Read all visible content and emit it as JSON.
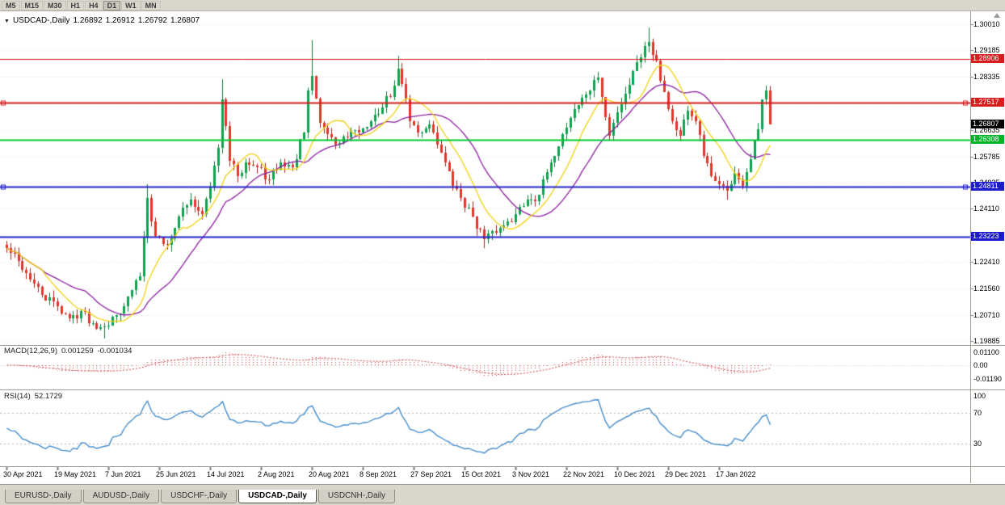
{
  "toolbar": {
    "timeframes": [
      "M5",
      "M15",
      "M30",
      "H1",
      "H4",
      "D1",
      "W1",
      "MN"
    ],
    "active": "D1"
  },
  "chart": {
    "symbol": "USDCAD-,Daily",
    "collapse_icon": "▼",
    "ohlc": {
      "open": "1.26892",
      "high": "1.26912",
      "low": "1.26792",
      "close": "1.26807"
    },
    "price_axis": {
      "ticks": [
        {
          "label": "1.30010",
          "v": 1.3001
        },
        {
          "label": "1.29185",
          "v": 1.29185
        },
        {
          "label": "1.28335",
          "v": 1.28335
        },
        {
          "label": "1.27485",
          "v": 1.27485
        },
        {
          "label": "1.26635",
          "v": 1.26635
        },
        {
          "label": "1.25785",
          "v": 1.25785
        },
        {
          "label": "1.24935",
          "v": 1.24935
        },
        {
          "label": "1.24110",
          "v": 1.2411
        },
        {
          "label": "1.23260",
          "v": 1.2326
        },
        {
          "label": "1.22410",
          "v": 1.2241
        },
        {
          "label": "1.21560",
          "v": 1.2156
        },
        {
          "label": "1.20710",
          "v": 1.2071
        },
        {
          "label": "1.19885",
          "v": 1.19885
        }
      ],
      "tags": [
        {
          "label": "1.28906",
          "v": 1.28906,
          "color": "#d61c1c",
          "current": false
        },
        {
          "label": "1.27517",
          "v": 1.27517,
          "color": "#d61c1c",
          "current": false
        },
        {
          "label": "1.26807",
          "v": 1.26807,
          "color": "#000000",
          "current": true
        },
        {
          "label": "1.26308",
          "v": 1.26308,
          "color": "#00b428",
          "current": false
        },
        {
          "label": "1.24811",
          "v": 1.24811,
          "color": "#1c1ccc",
          "current": false
        },
        {
          "label": "1.23223",
          "v": 1.23223,
          "color": "#1c1ccc",
          "current": false
        }
      ]
    },
    "levels": [
      {
        "v": 1.28906,
        "color": "#d61c1c",
        "w": 1,
        "ends": false
      },
      {
        "v": 1.27517,
        "color": "#d61c1c",
        "w": 2,
        "ends": true
      },
      {
        "v": 1.26308,
        "color": "#00c832",
        "w": 2,
        "ends": false
      },
      {
        "v": 1.24811,
        "color": "#2222cc",
        "w": 2,
        "ends": true
      },
      {
        "v": 1.23223,
        "color": "#2222cc",
        "w": 2,
        "ends": false
      }
    ],
    "dates": [
      "30 Apr 2021",
      "19 May 2021",
      "7 Jun 2021",
      "25 Jun 2021",
      "14 Jul 2021",
      "2 Aug 2021",
      "20 Aug 2021",
      "8 Sep 2021",
      "27 Sep 2021",
      "15 Oct 2021",
      "3 Nov 2021",
      "22 Nov 2021",
      "10 Dec 2021",
      "29 Dec 2021",
      "17 Jan 2022"
    ]
  },
  "indicators": {
    "macd": {
      "label": "MACD(12,26,9)",
      "value_main": "0.001259",
      "value_signal": "-0.001034",
      "color": "#cc4040",
      "axis": [
        {
          "label": "0.01100",
          "v": 0.011
        },
        {
          "label": "0.00",
          "v": 0
        },
        {
          "label": "-0.01190",
          "v": -0.0119
        }
      ]
    },
    "rsi": {
      "label": "RSI(14)",
      "value": "52.1729",
      "color": "#3a86c8",
      "axis": [
        {
          "label": "100",
          "v": 100
        },
        {
          "label": "70",
          "v": 70
        },
        {
          "label": "30",
          "v": 30
        }
      ],
      "levels": [
        70,
        30
      ]
    }
  },
  "tabs": [
    {
      "label": "EURUSD-,Daily",
      "active": false
    },
    {
      "label": "AUDUSD-,Daily",
      "active": false
    },
    {
      "label": "USDCHF-,Daily",
      "active": false
    },
    {
      "label": "USDCAD-,Daily",
      "active": true
    },
    {
      "label": "USDCNH-,Daily",
      "active": false
    }
  ],
  "chart_data": {
    "type": "candlestick",
    "symbol": "USDCAD",
    "timeframe": "Daily",
    "bars": 196,
    "bars_per_label": 13,
    "seed": 42,
    "noise": 0.003,
    "wick": 0.0022,
    "price_range": {
      "axis_top": 1.3001,
      "axis_bottom": 1.19885
    },
    "ma": [
      {
        "period": 21,
        "color": "#8b1f9e"
      },
      {
        "period": 10,
        "color": "#f2d211"
      }
    ],
    "anchors": [
      [
        0,
        1.2285
      ],
      [
        3,
        1.2245
      ],
      [
        6,
        1.2185
      ],
      [
        9,
        1.2135
      ],
      [
        13,
        1.21
      ],
      [
        16,
        1.206
      ],
      [
        19,
        1.2085
      ],
      [
        22,
        1.2045
      ],
      [
        25,
        1.2035
      ],
      [
        28,
        1.207
      ],
      [
        31,
        1.213
      ],
      [
        34,
        1.2195
      ],
      [
        36,
        1.2445
      ],
      [
        38,
        1.2325
      ],
      [
        41,
        1.2295
      ],
      [
        44,
        1.2385
      ],
      [
        47,
        1.244
      ],
      [
        50,
        1.2395
      ],
      [
        52,
        1.248
      ],
      [
        54,
        1.2605
      ],
      [
        55,
        1.276
      ],
      [
        57,
        1.2565
      ],
      [
        59,
        1.2515
      ],
      [
        61,
        1.256
      ],
      [
        64,
        1.2545
      ],
      [
        67,
        1.2505
      ],
      [
        70,
        1.256
      ],
      [
        73,
        1.2545
      ],
      [
        76,
        1.2655
      ],
      [
        77,
        1.279
      ],
      [
        78,
        1.2835
      ],
      [
        80,
        1.2685
      ],
      [
        82,
        1.265
      ],
      [
        84,
        1.2615
      ],
      [
        87,
        1.264
      ],
      [
        90,
        1.2655
      ],
      [
        93,
        1.269
      ],
      [
        96,
        1.2735
      ],
      [
        99,
        1.2805
      ],
      [
        100,
        1.286
      ],
      [
        101,
        1.281
      ],
      [
        103,
        1.269
      ],
      [
        105,
        1.2655
      ],
      [
        108,
        1.268
      ],
      [
        111,
        1.259
      ],
      [
        114,
        1.2485
      ],
      [
        116,
        1.2445
      ],
      [
        119,
        1.2385
      ],
      [
        122,
        1.2315
      ],
      [
        125,
        1.2335
      ],
      [
        128,
        1.237
      ],
      [
        130,
        1.2395
      ],
      [
        133,
        1.244
      ],
      [
        136,
        1.2455
      ],
      [
        139,
        1.256
      ],
      [
        142,
        1.265
      ],
      [
        145,
        1.273
      ],
      [
        148,
        1.2775
      ],
      [
        151,
        1.283
      ],
      [
        153,
        1.2705
      ],
      [
        154,
        1.2645
      ],
      [
        156,
        1.272
      ],
      [
        158,
        1.278
      ],
      [
        161,
        1.288
      ],
      [
        163,
        1.293
      ],
      [
        164,
        1.2945
      ],
      [
        166,
        1.2885
      ],
      [
        168,
        1.2785
      ],
      [
        170,
        1.269
      ],
      [
        172,
        1.2645
      ],
      [
        174,
        1.2725
      ],
      [
        176,
        1.269
      ],
      [
        178,
        1.258
      ],
      [
        180,
        1.2515
      ],
      [
        182,
        1.249
      ],
      [
        184,
        1.247
      ],
      [
        186,
        1.2525
      ],
      [
        188,
        1.2485
      ],
      [
        190,
        1.257
      ],
      [
        192,
        1.2665
      ],
      [
        193,
        1.276
      ],
      [
        194,
        1.279
      ],
      [
        195,
        1.26807
      ]
    ],
    "spikes": [
      {
        "bar": 25,
        "down": 0.0035
      },
      {
        "bar": 36,
        "up": 0.0045
      },
      {
        "bar": 55,
        "up": 0.0065
      },
      {
        "bar": 78,
        "up": 0.0115
      },
      {
        "bar": 100,
        "up": 0.004
      },
      {
        "bar": 122,
        "down": 0.003
      },
      {
        "bar": 164,
        "up": 0.0045
      },
      {
        "bar": 184,
        "down": 0.003
      },
      {
        "bar": 194,
        "up": 0.0015
      }
    ]
  },
  "colors": {
    "bull": "#0ea24e",
    "bullWick": "#0b7a3a",
    "bear": "#e2352c",
    "bearWick": "#a5231c",
    "grid": "#e6e6e6",
    "sep": "#9e9b93",
    "axis_text": "#000000"
  }
}
